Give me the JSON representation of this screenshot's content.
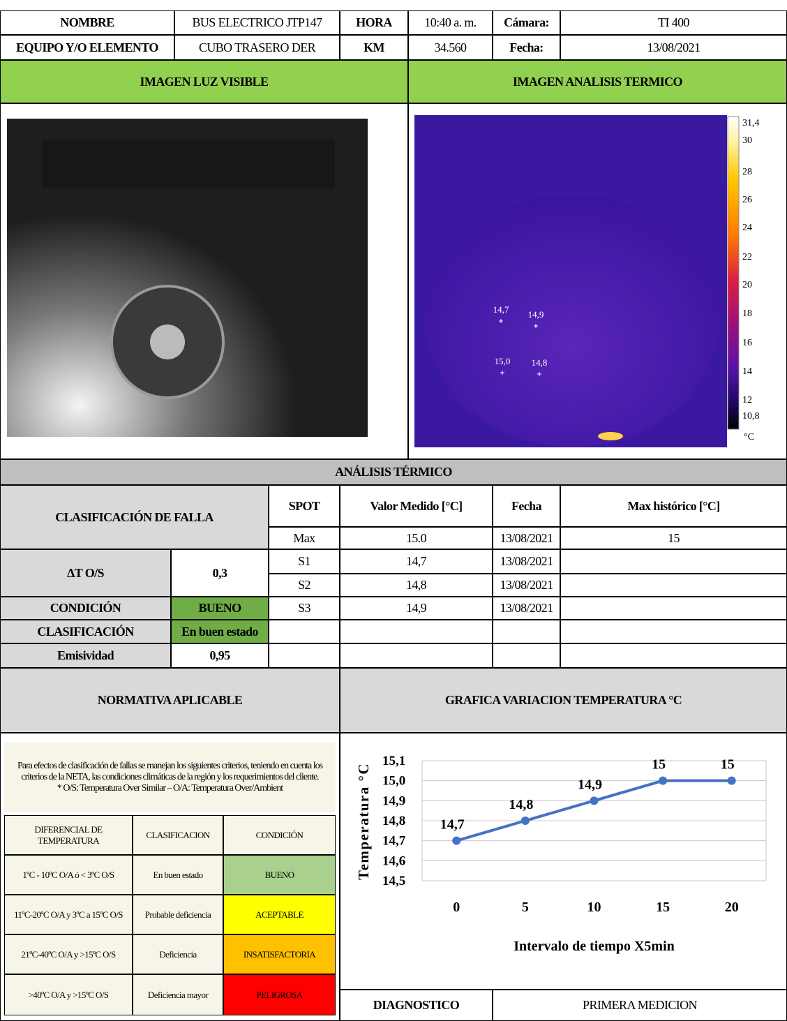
{
  "header": {
    "rows": [
      [
        "NOMBRE",
        "BUS ELECTRICO JTP147",
        "HORA",
        "10:40 a. m.",
        "Cámara:",
        "TI 400"
      ],
      [
        "EQUIPO Y/O ELEMENTO",
        "CUBO TRASERO DER",
        "KM",
        "34.560",
        "Fecha:",
        "13/08/2021"
      ]
    ]
  },
  "sections": {
    "visible": "IMAGEN LUZ VISIBLE",
    "thermal": "IMAGEN ANALISIS TERMICO"
  },
  "thermal": {
    "scale_labels": [
      "31,4",
      "30",
      "28",
      "26",
      "24",
      "22",
      "20",
      "18",
      "16",
      "14",
      "12",
      "10,8"
    ],
    "unit": "°C",
    "spots": [
      "14,7",
      "14,9",
      "15,0",
      "14,8"
    ]
  },
  "analysis": {
    "title": "ANÁLISIS TÉRMICO",
    "failure_label": "CLASIFICACIÓN DE FALLA",
    "columns": [
      "SPOT",
      "Valor Medido [°C]",
      "Fecha",
      "Max histórico [°C]"
    ],
    "spots": [
      [
        "Max",
        "15.0",
        "13/08/2021",
        "15"
      ],
      [
        "S1",
        "14,7",
        "13/08/2021"
      ],
      [
        "S2",
        "14,8",
        "13/08/2021"
      ],
      [
        "S3",
        "14,9",
        "13/08/2021"
      ]
    ],
    "delta_label": "ΔT O/S",
    "delta_value": "0,3",
    "condition_label": "CONDICIÓN",
    "condition_value": "BUENO",
    "classification_label": "CLASIFICACIÓN",
    "classification_value": "En buen estado",
    "emissivity_label": "Emisividad",
    "emissivity_value": "0,95"
  },
  "normativa": {
    "title": "NORMATIVA APLICABLE",
    "intro": "Para efectos de clasificación de fallas se manejan los siguientes criterios, teniendo en cuenta los criterios de la NETA, las condiciones climáticas de la región y los requerimientos del cliente.",
    "note": "* O/S: Temperatura Over Similar – O/A: Temperatura Over/Ambient",
    "table_header": [
      "DIFERENCIAL DE TEMPERATURA",
      "CLASIFICACION",
      "CONDICIÓN"
    ],
    "rows": [
      [
        "1ºC - 10ºC O/A ó < 3ºC O/S",
        "En buen estado",
        "BUENO"
      ],
      [
        "11ºC-20ºC O/A y 3ºC a 15ºC O/S",
        "Probable deficiencia",
        "ACEPTABLE"
      ],
      [
        "21ºC-40ºC O/A y >15ºC O/S",
        "Deficiencia",
        "INSATISFACTORIA"
      ],
      [
        ">40ºC O/A y >15ºC O/S",
        "Deficiencia mayor",
        "PELIGROSA"
      ]
    ],
    "condition_colors": [
      "#a9d08e",
      "#ffff00",
      "#ffc000",
      "#ff0000"
    ]
  },
  "chart_title": "GRAFICA VARIACION TEMPERATURA °C",
  "chart_data": {
    "type": "line",
    "y_label": "Temperatura °C",
    "x_label": "Intervalo de tiempo X5min",
    "categories": [
      "0",
      "5",
      "10",
      "15",
      "20"
    ],
    "values": [
      14.7,
      14.8,
      14.9,
      15,
      15
    ],
    "value_labels": [
      "14,7",
      "14,8",
      "14,9",
      "15",
      "15"
    ],
    "color": "#4472c4",
    "ylim": [
      14.5,
      15.1
    ],
    "yticks": [
      {
        "value": 14.5,
        "label": "14,5"
      },
      {
        "value": 14.6,
        "label": "14,6"
      },
      {
        "value": 14.7,
        "label": "14,7"
      },
      {
        "value": 14.8,
        "label": "14,8"
      },
      {
        "value": 14.9,
        "label": "14,9"
      },
      {
        "value": 15.0,
        "label": "15,0"
      },
      {
        "value": 15.1,
        "label": "15,1"
      }
    ],
    "grid": true
  },
  "diagnostic": {
    "label": "DIAGNOSTICO",
    "value": "PRIMERA MEDICION"
  }
}
